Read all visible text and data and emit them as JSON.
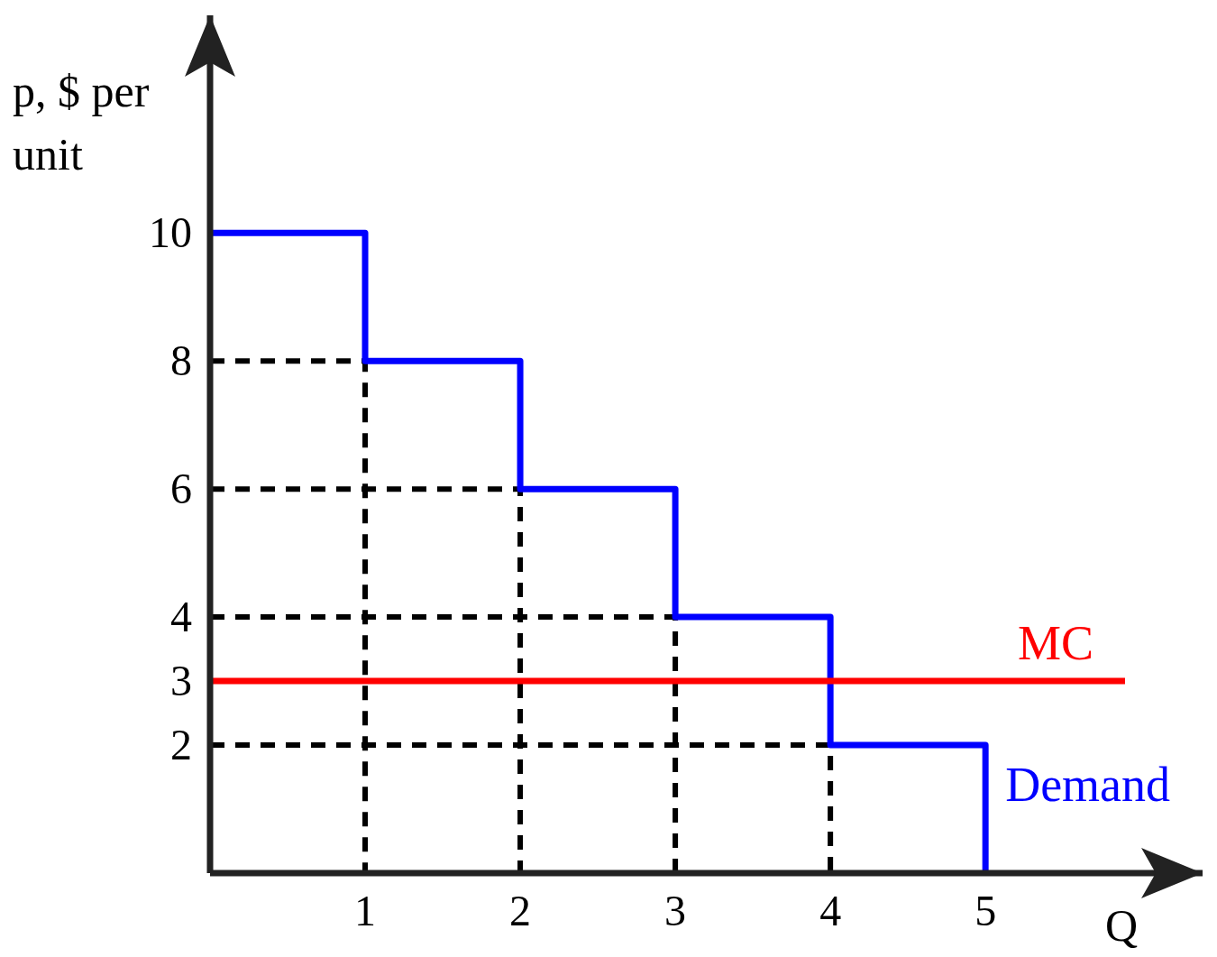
{
  "chart_data": {
    "type": "step",
    "xlabel": "Q",
    "ylabel": "p, $ per unit",
    "xlim": [
      0,
      6.4
    ],
    "ylim": [
      0,
      13.4
    ],
    "xticks": [
      1,
      2,
      3,
      4,
      5
    ],
    "yticks": [
      2,
      3,
      4,
      6,
      8,
      10
    ],
    "grid": false,
    "legend": false,
    "series": [
      {
        "color": "#000000",
        "type": "line",
        "line_style": "dashed",
        "x": [
          0,
          1,
          1
        ],
        "values": [
          8,
          8,
          0
        ]
      },
      {
        "color": "#000000",
        "type": "line",
        "line_style": "dashed",
        "x": [
          0,
          2,
          2
        ],
        "values": [
          6,
          6,
          0
        ]
      },
      {
        "color": "#000000",
        "type": "line",
        "line_style": "dashed",
        "x": [
          0,
          3,
          3
        ],
        "values": [
          4,
          4,
          0
        ]
      },
      {
        "color": "#000000",
        "type": "line",
        "line_style": "dashed",
        "x": [
          0,
          4,
          4
        ],
        "values": [
          2,
          2,
          0
        ]
      },
      {
        "name": "Demand",
        "color": "#0000ff",
        "x": [
          0,
          1,
          2,
          3,
          4,
          5
        ],
        "values": [
          10,
          8,
          6,
          4,
          2,
          0
        ]
      },
      {
        "name": "MC",
        "color": "#ff0000",
        "type": "line",
        "x": [
          0,
          5.9
        ],
        "values": [
          3,
          3
        ]
      }
    ]
  }
}
